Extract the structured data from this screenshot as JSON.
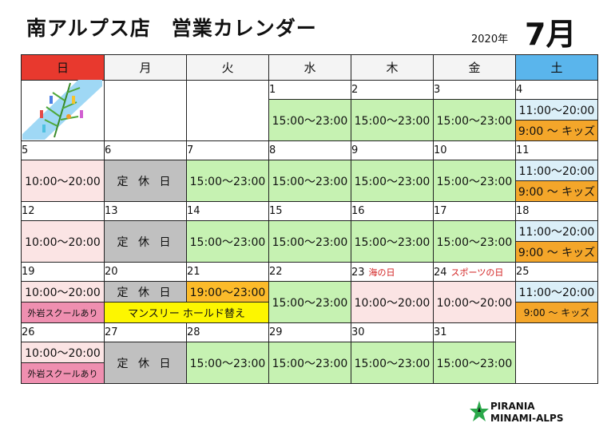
{
  "header": {
    "title": "南アルプス店　営業カレンダー",
    "year": "2020年",
    "month": "7月"
  },
  "weekdays": [
    "日",
    "月",
    "火",
    "水",
    "木",
    "金",
    "土"
  ],
  "days": {
    "d1": "1",
    "d2": "2",
    "d3": "3",
    "d4": "4",
    "d5": "5",
    "d6": "6",
    "d7": "7",
    "d8": "8",
    "d9": "9",
    "d10": "10",
    "d11": "11",
    "d12": "12",
    "d13": "13",
    "d14": "14",
    "d15": "15",
    "d16": "16",
    "d17": "17",
    "d18": "18",
    "d19": "19",
    "d20": "20",
    "d21": "21",
    "d22": "22",
    "d23": "23",
    "d24": "24",
    "d25": "25",
    "d26": "26",
    "d27": "27",
    "d28": "28",
    "d29": "29",
    "d30": "30",
    "d31": "31"
  },
  "holidays": {
    "d23": "海の日",
    "d24": "スポーツの日"
  },
  "labels": {
    "weekday_hours": "15:00～23:00",
    "sunday_hours": "10:00～20:00",
    "holiday_hours": "10:00～20:00",
    "saturday_hours": "11:00～20:00",
    "kids": "9:00 ～ キッズ",
    "closed": "定 休 日",
    "late_open": "19:00～23:00",
    "outdoor_school": "外岩スクールあり",
    "monthly_hold": "マンスリー ホールド替え"
  },
  "logo": {
    "line1": "PIRANIA",
    "line2": "MINAMI-ALPS"
  },
  "colors": {
    "sunday_header": "#e8392e",
    "saturday_header": "#5ab5ec",
    "weekday_open": "#c6f2b2",
    "sunday_open": "#fbe4e4",
    "closed": "#c0c0c0",
    "saturday_open": "#dbeff8",
    "kids": "#f4a62a",
    "event_yellow": "#fdf600",
    "school_pink": "#ef8fb0",
    "holiday_text": "#d21e1e"
  }
}
